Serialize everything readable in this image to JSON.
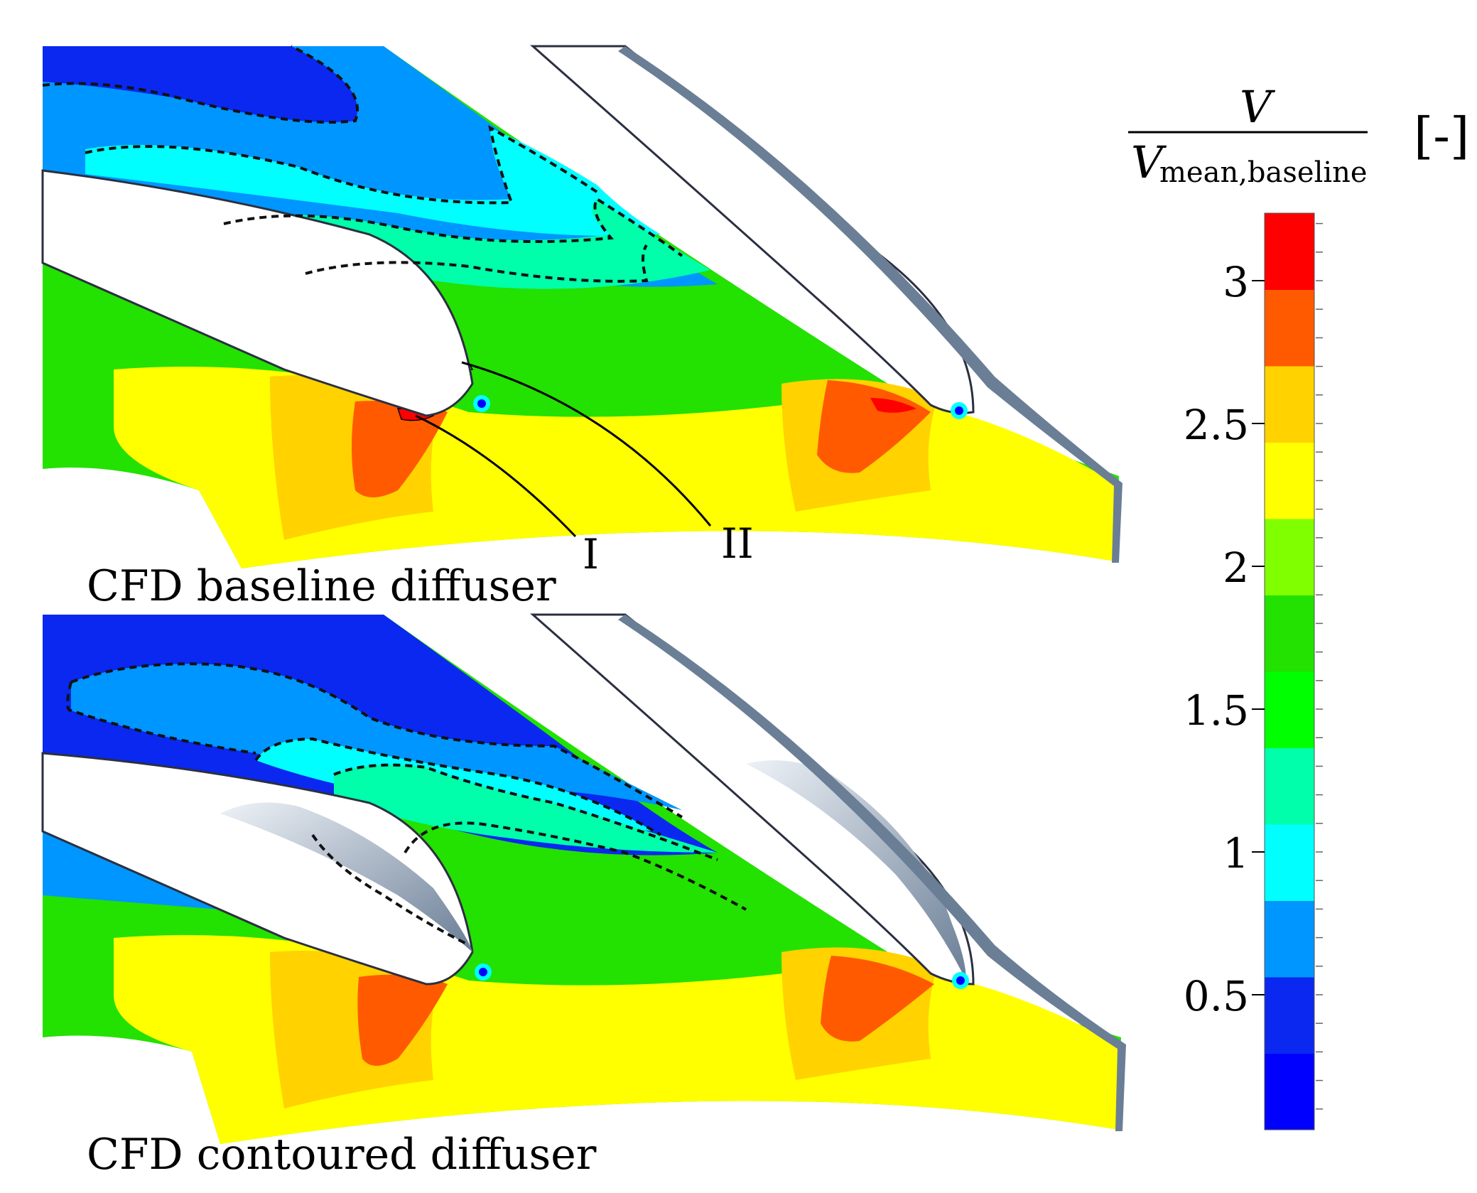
{
  "panels": [
    {
      "caption": "CFD baseline diffuser"
    },
    {
      "caption": "CFD contoured diffuser"
    }
  ],
  "annotations": [
    "I",
    "II"
  ],
  "colorbar": {
    "label_numerator": "V",
    "label_denominator_symbol": "V",
    "label_denominator_subscript": "mean,baseline",
    "unit": "[-]",
    "ticks": [
      "0.5",
      "1",
      "1.5",
      "2",
      "2.5",
      "3"
    ],
    "levels": [
      "#0000ff",
      "#0a28f0",
      "#0096ff",
      "#00ffff",
      "#00ffaa",
      "#00ff00",
      "#23e100",
      "#80ff00",
      "#ffff00",
      "#ffd200",
      "#ff5a00",
      "#ff0000"
    ]
  }
}
